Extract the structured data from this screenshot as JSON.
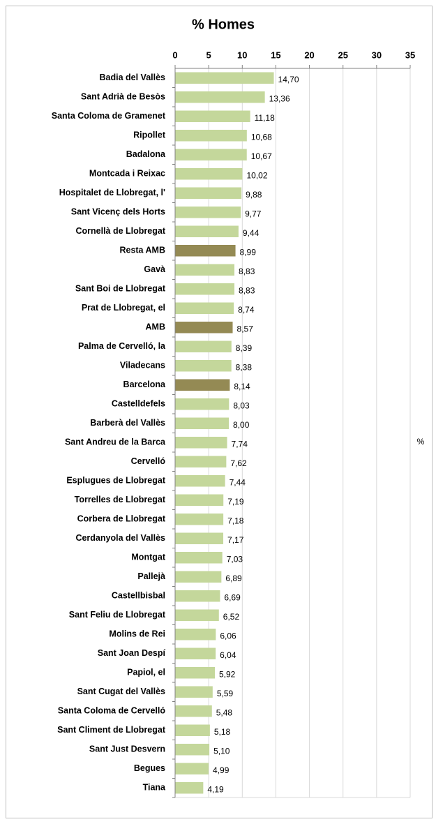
{
  "chart_data": {
    "type": "barh",
    "title": "% Homes",
    "axis_label": "%",
    "categories": [
      "Badia del Vallès",
      "Sant Adrià de Besòs",
      "Santa Coloma de Gramenet",
      "Ripollet",
      "Badalona",
      "Montcada i Reixac",
      "Hospitalet de Llobregat, l'",
      "Sant Vicenç dels Horts",
      "Cornellà de Llobregat",
      "Resta AMB",
      "Gavà",
      "Sant Boi de Llobregat",
      "Prat de Llobregat, el",
      "AMB",
      "Palma de Cervelló, la",
      "Viladecans",
      "Barcelona",
      "Castelldefels",
      "Barberà del Vallès",
      "Sant Andreu de la Barca",
      "Cervelló",
      "Esplugues de Llobregat",
      "Torrelles de Llobregat",
      "Corbera de Llobregat",
      "Cerdanyola del Vallès",
      "Montgat",
      "Pallejà",
      "Castellbisbal",
      "Sant Feliu de Llobregat",
      "Molins de Rei",
      "Sant Joan Despí",
      "Papiol, el",
      "Sant Cugat del Vallès",
      "Santa Coloma de Cervelló",
      "Sant Climent de Llobregat",
      "Sant Just Desvern",
      "Begues",
      "Tiana"
    ],
    "values": [
      14.7,
      13.36,
      11.18,
      10.68,
      10.67,
      10.02,
      9.88,
      9.77,
      9.44,
      8.99,
      8.83,
      8.83,
      8.74,
      8.57,
      8.39,
      8.38,
      8.14,
      8.03,
      8.0,
      7.74,
      7.62,
      7.44,
      7.19,
      7.18,
      7.17,
      7.03,
      6.89,
      6.69,
      6.52,
      6.06,
      6.04,
      5.92,
      5.59,
      5.48,
      5.18,
      5.1,
      4.99,
      4.19
    ],
    "value_labels": [
      "14,70",
      "13,36",
      "11,18",
      "10,68",
      "10,67",
      "10,02",
      "9,88",
      "9,77",
      "9,44",
      "8,99",
      "8,83",
      "8,83",
      "8,74",
      "8,57",
      "8,39",
      "8,38",
      "8,14",
      "8,03",
      "8,00",
      "7,74",
      "7,62",
      "7,44",
      "7,19",
      "7,18",
      "7,17",
      "7,03",
      "6,89",
      "6,69",
      "6,52",
      "6,06",
      "6,04",
      "5,92",
      "5,59",
      "5,48",
      "5,18",
      "5,10",
      "4,99",
      "4,19"
    ],
    "color": "#c4d79b",
    "highlight_color": "#948a54",
    "highlight": [
      "Resta AMB",
      "AMB",
      "Barcelona"
    ],
    "xlim": [
      0,
      35
    ],
    "xticks": [
      0,
      5,
      10,
      15,
      20,
      25,
      30,
      35
    ],
    "grid": true
  }
}
